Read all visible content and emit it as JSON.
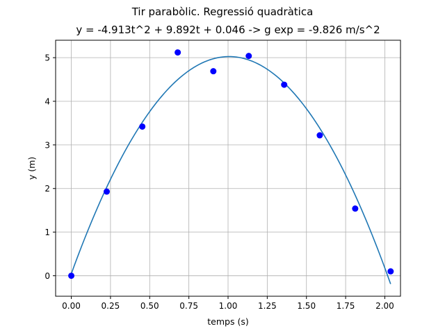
{
  "chart_data": {
    "type": "scatter",
    "suptitle": "Tir parabòlic. Regressió quadràtica",
    "title": "y = -4.913t^2 + 9.892t + 0.046 -> g exp = -9.826 m/s^2",
    "xlabel": "temps (s)",
    "ylabel": "y (m)",
    "xlim": [
      -0.1,
      2.1
    ],
    "ylim": [
      -0.47,
      5.4
    ],
    "grid": true,
    "xticks": [
      0.0,
      0.25,
      0.5,
      0.75,
      1.0,
      1.25,
      1.5,
      1.75,
      2.0
    ],
    "xtick_labels": [
      "0.00",
      "0.25",
      "0.50",
      "0.75",
      "1.00",
      "1.25",
      "1.50",
      "1.75",
      "2.00"
    ],
    "yticks": [
      0,
      1,
      2,
      3,
      4,
      5
    ],
    "ytick_labels": [
      "0",
      "1",
      "2",
      "3",
      "4",
      "5"
    ],
    "points": {
      "color": "#0000ff",
      "x": [
        0.0,
        0.226,
        0.453,
        0.679,
        0.906,
        1.132,
        1.358,
        1.585,
        1.811,
        2.037
      ],
      "y": [
        0.0,
        1.93,
        3.42,
        5.12,
        4.69,
        5.04,
        4.38,
        3.22,
        1.54,
        0.1
      ]
    },
    "fit": {
      "color": "#1f77b4",
      "a": -4.913,
      "b": 9.892,
      "c": 0.046,
      "x_range": [
        0.0,
        2.037
      ]
    }
  }
}
